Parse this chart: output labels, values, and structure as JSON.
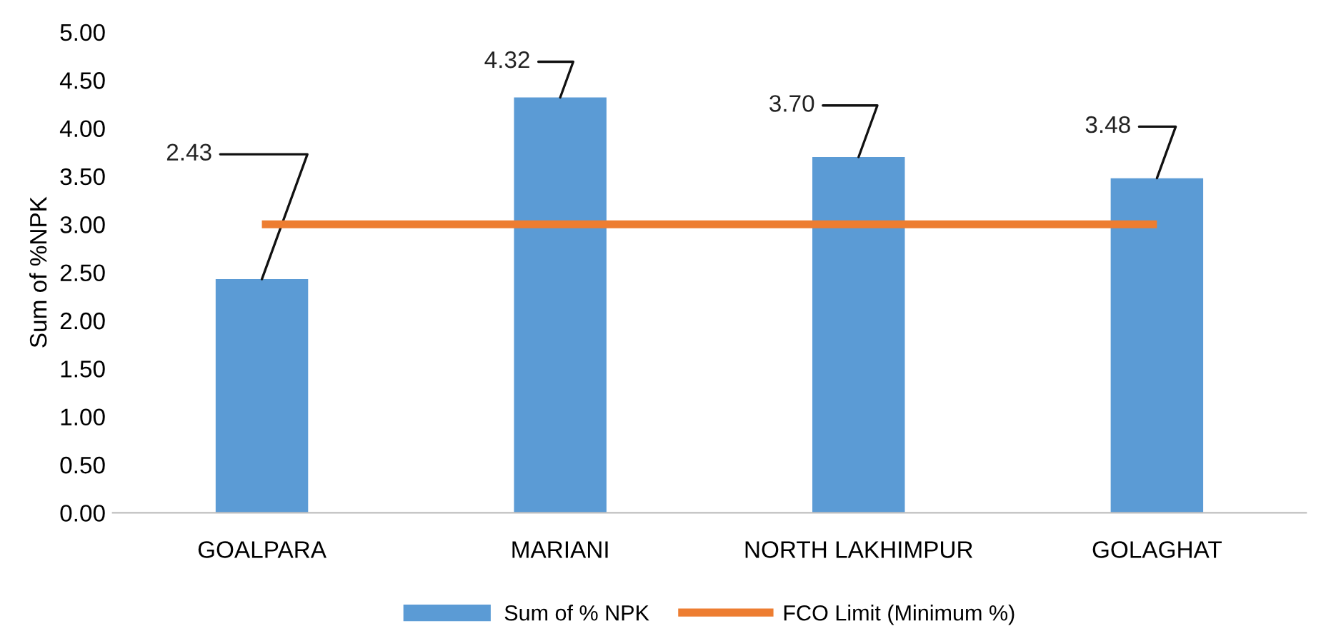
{
  "chart_data": {
    "type": "bar",
    "ylabel": "Sum of %NPK",
    "categories": [
      "GOALPARA",
      "MARIANI",
      "NORTH LAKHIMPUR",
      "GOLAGHAT"
    ],
    "series": [
      {
        "name": "Sum of % NPK",
        "color": "#5b9bd5",
        "values": [
          2.43,
          4.32,
          3.7,
          3.48
        ],
        "value_labels": [
          "2.43",
          "4.32",
          "3.70",
          "3.48"
        ]
      },
      {
        "name": "FCO Limit (Minimum %)",
        "type": "line",
        "color": "#ed7d31",
        "values": [
          3.0,
          3.0,
          3.0,
          3.0
        ]
      }
    ],
    "ylim": [
      0,
      5
    ],
    "yticks": [
      {
        "value": 0,
        "label": "0.00"
      },
      {
        "value": 0.5,
        "label": "0.50"
      },
      {
        "value": 1,
        "label": "1.00"
      },
      {
        "value": 1.5,
        "label": "1.50"
      },
      {
        "value": 2,
        "label": "2.00"
      },
      {
        "value": 2.5,
        "label": "2.50"
      },
      {
        "value": 3,
        "label": "3.00"
      },
      {
        "value": 3.5,
        "label": "3.50"
      },
      {
        "value": 4,
        "label": "4.00"
      },
      {
        "value": 4.5,
        "label": "4.50"
      },
      {
        "value": 5,
        "label": "5.00"
      }
    ],
    "grid": false,
    "legend": "bottom",
    "marker": "none",
    "line_style": "solid"
  }
}
